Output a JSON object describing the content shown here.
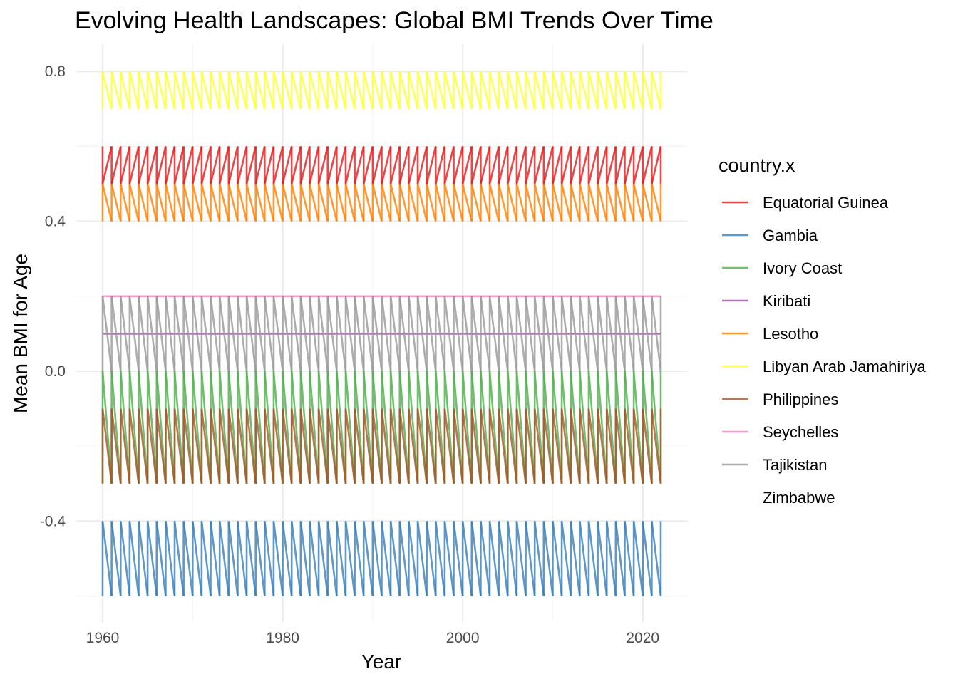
{
  "chart_data": {
    "type": "line",
    "title": "Evolving Health Landscapes: Global BMI Trends Over Time",
    "xlabel": "Year",
    "ylabel": "Mean BMI for Age",
    "xlim": [
      1957,
      2025
    ],
    "ylim": [
      -0.67,
      0.87
    ],
    "x_ticks": [
      1960,
      1980,
      2000,
      2020
    ],
    "x_tick_labels": [
      "1960",
      "1980",
      "2000",
      "2020"
    ],
    "y_ticks": [
      -0.4,
      0.0,
      0.4,
      0.8
    ],
    "y_tick_labels": [
      "-0.4",
      "0.0",
      "0.4",
      "0.8"
    ],
    "grid": true,
    "legend_title": "country.x",
    "legend_position": "right",
    "x": [
      1960,
      1961,
      1962,
      1963,
      1964,
      1965,
      1966,
      1967,
      1968,
      1969,
      1970,
      1971,
      1972,
      1973,
      1974,
      1975,
      1976,
      1977,
      1978,
      1979,
      1980,
      1981,
      1982,
      1983,
      1984,
      1985,
      1986,
      1987,
      1988,
      1989,
      1990,
      1991,
      1992,
      1993,
      1994,
      1995,
      1996,
      1997,
      1998,
      1999,
      2000,
      2001,
      2002,
      2003,
      2004,
      2005,
      2006,
      2007,
      2008,
      2009,
      2010,
      2011,
      2012,
      2013,
      2014,
      2015,
      2016,
      2017,
      2018,
      2019,
      2020,
      2021,
      2022
    ],
    "series": [
      {
        "name": "Equatorial Guinea",
        "color": "#E41A1C",
        "values_per_year": [
          0.6,
          0.5
        ]
      },
      {
        "name": "Gambia",
        "color": "#377EB8",
        "values_per_year": [
          -0.6,
          -0.4
        ]
      },
      {
        "name": "Ivory Coast",
        "color": "#4DAF4A",
        "values_per_year": [
          -0.3,
          0.0
        ]
      },
      {
        "name": "Kiribati",
        "color": "#984EA3",
        "values_per_year": [
          0.1,
          0.1
        ]
      },
      {
        "name": "Lesotho",
        "color": "#FF7F00",
        "values_per_year": [
          0.4,
          0.5
        ]
      },
      {
        "name": "Libyan Arab Jamahiriya",
        "color": "#FFFF33",
        "values_per_year": [
          0.7,
          0.8
        ]
      },
      {
        "name": "Philippines",
        "color": "#A65628",
        "values_per_year": [
          -0.3,
          -0.1
        ]
      },
      {
        "name": "Seychelles",
        "color": "#F781BF",
        "values_per_year": [
          0.2,
          0.2
        ]
      },
      {
        "name": "Tajikistan",
        "color": "#999999",
        "values_per_year": [
          0.0,
          0.2
        ]
      },
      {
        "name": "Zimbabwe",
        "color": "none",
        "values_per_year": []
      }
    ],
    "connector_path": [
      0.6,
      0.5,
      0.4,
      0.5,
      0.2,
      0.2,
      0.1,
      0.1,
      0.0,
      0.2,
      -0.3,
      -0.1,
      -0.3,
      0.0,
      -0.6,
      -0.4
    ]
  }
}
